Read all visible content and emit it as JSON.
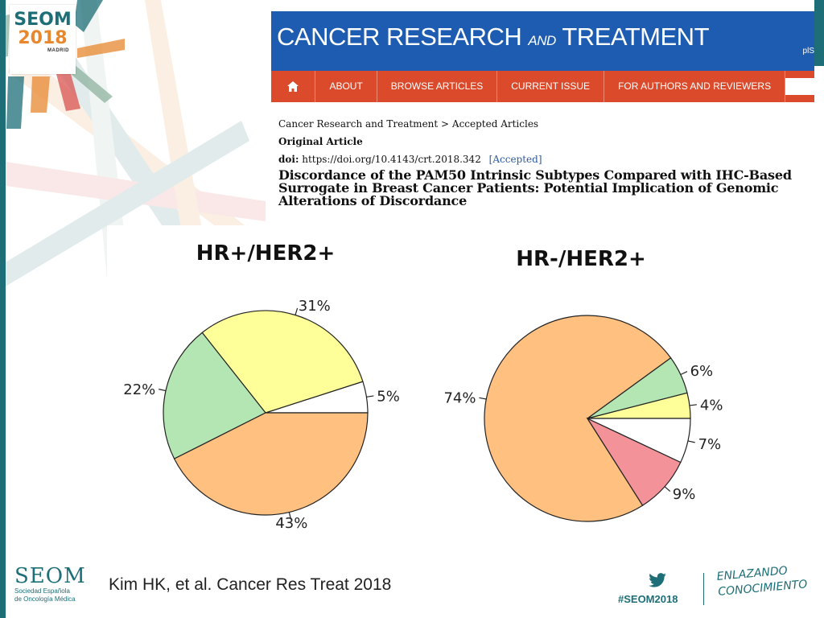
{
  "logo": {
    "name": "SEOM",
    "year": "2018",
    "city": "MADRID"
  },
  "journal": {
    "title_main": "CANCER RESEARCH",
    "title_and": "AND",
    "title_end": "TREATMENT",
    "corner_text": "plS"
  },
  "nav": {
    "items": [
      "ABOUT",
      "BROWSE ARTICLES",
      "CURRENT ISSUE",
      "FOR AUTHORS AND REVIEWERS"
    ]
  },
  "article": {
    "breadcrumb": "Cancer Research and Treatment > Accepted Articles",
    "type": "Original Article",
    "doi_label": "doi:",
    "doi_value": "https://doi.org/10.4143/crt.2018.342",
    "status": "[Accepted]",
    "title_lines": [
      "Discordance of the PAM50 Intrinsic Subtypes Compared with IHC-Based",
      "Surrogate in Breast Cancer Patients: Potential Implication of Genomic",
      "Alterations of Discordance"
    ]
  },
  "chart_data": [
    {
      "type": "pie",
      "title": "HR+/HER2+",
      "start_angle_deg": 0,
      "direction": "counterclockwise",
      "slices": [
        {
          "label": "5%",
          "value": 5,
          "color": "#ffffff"
        },
        {
          "label": "31%",
          "value": 31,
          "color": "#ffff99"
        },
        {
          "label": "22%",
          "value": 22,
          "color": "#b3e6b3"
        },
        {
          "label": "43%",
          "value": 43,
          "color": "#ffc080"
        }
      ]
    },
    {
      "type": "pie",
      "title": "HR-/HER2+",
      "start_angle_deg": 0,
      "direction": "counterclockwise",
      "slices": [
        {
          "label": "4%",
          "value": 4,
          "color": "#ffff99"
        },
        {
          "label": "6%",
          "value": 6,
          "color": "#b3e6b3"
        },
        {
          "label": "74%",
          "value": 74,
          "color": "#ffc080"
        },
        {
          "label": "9%",
          "value": 9,
          "color": "#f4929a"
        },
        {
          "label": "7%",
          "value": 7,
          "color": "#ffffff"
        }
      ]
    }
  ],
  "footer": {
    "logo_name": "SEOM",
    "logo_sub_1": "Sociedad Española",
    "logo_sub_2": "de Oncología Médica",
    "citation": "Kim HK, et al. Cancer Res Treat 2018",
    "hashtag": "#SEOM2018",
    "slogan_1": "ENLAZANDO",
    "slogan_2": "CONOCIMIENTO"
  },
  "colors": {
    "teal": "#1e6e77",
    "orange": "#e7882f",
    "journal_blue": "#1d5cb1",
    "nav_red": "#da4a2b"
  }
}
